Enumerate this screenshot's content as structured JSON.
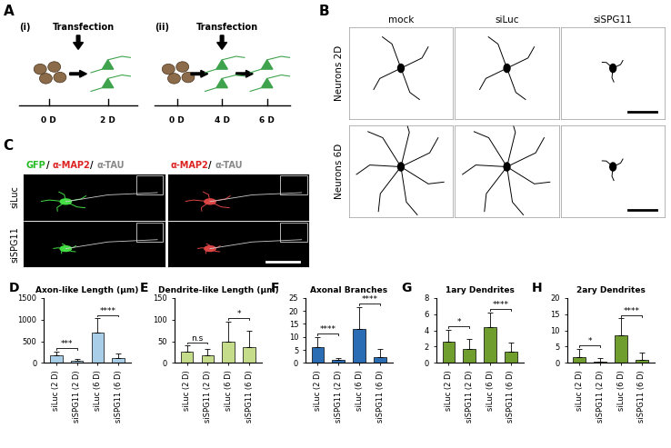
{
  "figure": {
    "A": {
      "panel_label": "A",
      "schemes": [
        {
          "label": "(i)",
          "event": "Transfection",
          "days": [
            "0 D",
            "2 D"
          ]
        },
        {
          "label": "(ii)",
          "event": "Transfection",
          "days": [
            "0 D",
            "4 D",
            "6 D"
          ]
        }
      ]
    },
    "B": {
      "panel_label": "B",
      "columns": [
        "mock",
        "siLuc",
        "siSPG11"
      ],
      "rows": [
        "Neurons 2D",
        "Neurons 6D"
      ]
    },
    "C": {
      "panel_label": "C",
      "headers": [
        [
          {
            "text": "GFP",
            "color": "#22bb22"
          },
          {
            "text": "/ ",
            "color": "#000000"
          },
          {
            "text": "α-MAP2",
            "color": "#dd2222"
          },
          {
            "text": "/ ",
            "color": "#000000"
          },
          {
            "text": "α-TAU",
            "color": "#888888"
          }
        ],
        [
          {
            "text": "α-MAP2",
            "color": "#dd2222"
          },
          {
            "text": "/ ",
            "color": "#000000"
          },
          {
            "text": "α-TAU",
            "color": "#888888"
          }
        ]
      ],
      "rows": [
        "siLuc",
        "siSPG11"
      ]
    }
  },
  "chart_data": [
    {
      "type": "bar",
      "panel_label": "D",
      "title": "Axon-like Length (μm)",
      "categories": [
        "siLuc (2 D)",
        "siSPG11 (2 D)",
        "siLuc (6 D)",
        "siSPG11 (6 D)"
      ],
      "values": [
        170,
        50,
        700,
        110
      ],
      "errors": [
        90,
        40,
        330,
        100
      ],
      "color": "#a9cfe8",
      "ylim": [
        0,
        1500
      ],
      "yticks": [
        0,
        500,
        1000,
        1500
      ],
      "annotations": [
        {
          "text": "***",
          "between": [
            "siLuc (2 D)",
            "siSPG11 (2 D)"
          ]
        },
        {
          "text": "****",
          "between": [
            "siLuc (6 D)",
            "siSPG11 (6 D)"
          ]
        }
      ]
    },
    {
      "type": "bar",
      "panel_label": "E",
      "title": "Dendrite-like Length (μm)",
      "categories": [
        "siLuc (2 D)",
        "siSPG11 (2 D)",
        "siLuc (6 D)",
        "siSPG11 (6 D)"
      ],
      "values": [
        25,
        18,
        50,
        37
      ],
      "errors": [
        15,
        15,
        45,
        37
      ],
      "color": "#c5dc8a",
      "ylim": [
        0,
        150
      ],
      "yticks": [
        0,
        50,
        100,
        150
      ],
      "annotations": [
        {
          "text": "n.s",
          "between": [
            "siLuc (2 D)",
            "siSPG11 (2 D)"
          ]
        },
        {
          "text": "*",
          "between": [
            "siLuc (6 D)",
            "siSPG11 (6 D)"
          ]
        }
      ]
    },
    {
      "type": "bar",
      "panel_label": "F",
      "title": "Axonal Branches",
      "categories": [
        "siLuc (2 D)",
        "siSPG11 (2 D)",
        "siLuc (6 D)",
        "siSPG11 (6 D)"
      ],
      "values": [
        6,
        1,
        13,
        2.2
      ],
      "errors": [
        4,
        1,
        8.5,
        3
      ],
      "color": "#2a6db5",
      "ylim": [
        0,
        25
      ],
      "yticks": [
        0,
        5,
        10,
        15,
        20,
        25
      ],
      "annotations": [
        {
          "text": "****",
          "between": [
            "siLuc (2 D)",
            "siSPG11 (2 D)"
          ]
        },
        {
          "text": "****",
          "between": [
            "siLuc (6 D)",
            "siSPG11 (6 D)"
          ]
        }
      ]
    },
    {
      "type": "bar",
      "panel_label": "G",
      "title": "1ary Dendrites",
      "categories": [
        "siLuc (2 D)",
        "siSPG11 (2 D)",
        "siLuc (6 D)",
        "siSPG11 (6 D)"
      ],
      "values": [
        2.6,
        1.7,
        4.4,
        1.4
      ],
      "errors": [
        1.5,
        1.2,
        1.8,
        1.1
      ],
      "color": "#6f9e2e",
      "ylim": [
        0,
        8
      ],
      "yticks": [
        0,
        2,
        4,
        6,
        8
      ],
      "annotations": [
        {
          "text": "*",
          "between": [
            "siLuc (2 D)",
            "siSPG11 (2 D)"
          ]
        },
        {
          "text": "****",
          "between": [
            "siLuc (6 D)",
            "siSPG11 (6 D)"
          ]
        }
      ]
    },
    {
      "type": "bar",
      "panel_label": "H",
      "title": "2ary Dendrites",
      "categories": [
        "siLuc (2 D)",
        "siSPG11 (2 D)",
        "siLuc (6 D)",
        "siSPG11 (6 D)"
      ],
      "values": [
        1.9,
        0.4,
        8.4,
        1.0
      ],
      "errors": [
        2.5,
        1.0,
        5.3,
        2.2
      ],
      "color": "#6f9e2e",
      "ylim": [
        0,
        20
      ],
      "yticks": [
        0,
        5,
        10,
        15,
        20
      ],
      "annotations": [
        {
          "text": "*",
          "between": [
            "siLuc (2 D)",
            "siSPG11 (2 D)"
          ]
        },
        {
          "text": "****",
          "between": [
            "siLuc (6 D)",
            "siSPG11 (6 D)"
          ]
        }
      ]
    }
  ]
}
